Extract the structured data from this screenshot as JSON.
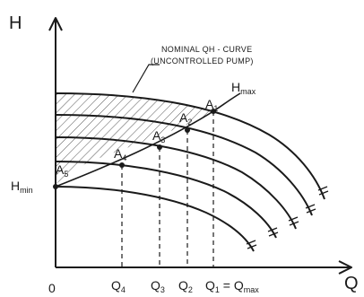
{
  "axes": {
    "y_label": "H",
    "x_label": "Q",
    "origin": "0"
  },
  "annotation": {
    "line1": "NOMINAL QH - CURVE",
    "line2": "(UNCONTROLLED PUMP)"
  },
  "hmax": {
    "main": "H",
    "sub": "max"
  },
  "hmin": {
    "main": "H",
    "sub": "min"
  },
  "points": [
    {
      "main": "A",
      "sub": "1"
    },
    {
      "main": "A",
      "sub": "2"
    },
    {
      "main": "A",
      "sub": "3"
    },
    {
      "main": "A",
      "sub": "4"
    },
    {
      "main": "A",
      "sub": "5"
    }
  ],
  "x_ticks": [
    {
      "main": "Q",
      "sub": "4",
      "suffix": ""
    },
    {
      "main": "Q",
      "sub": "3",
      "suffix": ""
    },
    {
      "main": "Q",
      "sub": "2",
      "suffix": ""
    },
    {
      "main": "Q",
      "sub": "1",
      "suffix": " = Q",
      "sub2": "max"
    }
  ],
  "colors": {
    "ink": "#1a1a1a",
    "hatch": "#555555"
  }
}
